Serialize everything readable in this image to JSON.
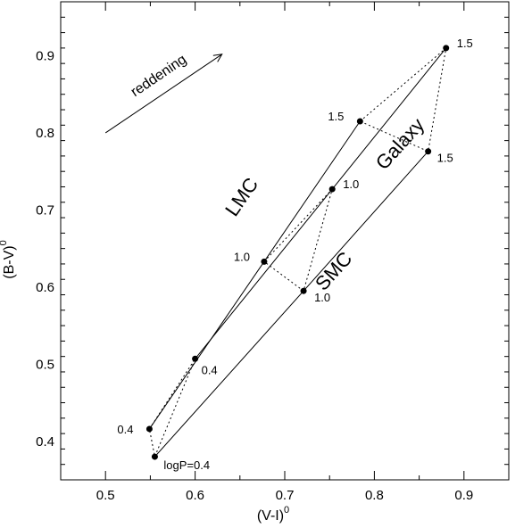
{
  "chart_data": {
    "type": "scatter",
    "xlabel": "(V-I)",
    "xlabel_sup": "0",
    "ylabel": "(B-V)",
    "ylabel_sup": "0",
    "xlim": [
      0.45,
      0.95
    ],
    "ylim": [
      0.35,
      0.97
    ],
    "xticks": [
      0.5,
      0.6,
      0.7,
      0.8,
      0.9
    ],
    "yticks": [
      0.4,
      0.5,
      0.6,
      0.7,
      0.8,
      0.9
    ],
    "grid": false,
    "series": [
      {
        "name": "LMC",
        "x": [
          0.549,
          0.677,
          0.784
        ],
        "y": [
          0.416,
          0.633,
          0.815
        ],
        "point_labels": [
          "0.4",
          "1.0",
          "1.5"
        ],
        "name_at": [
          0.658,
          0.712
        ],
        "name_angle": -55
      },
      {
        "name": "Galaxy",
        "x": [
          0.6,
          0.753,
          0.88
        ],
        "y": [
          0.507,
          0.727,
          0.91
        ],
        "point_labels": [
          "0.4",
          "1.0",
          "1.5"
        ],
        "name_at": [
          0.834,
          0.78
        ],
        "name_angle": -48
      },
      {
        "name": "SMC",
        "x": [
          0.555,
          0.721,
          0.86
        ],
        "y": [
          0.38,
          0.595,
          0.776
        ],
        "point_labels": [
          "logP=0.4",
          "1.0",
          "1.5"
        ],
        "name_at": [
          0.76,
          0.615
        ],
        "name_angle": -48
      }
    ],
    "connectors": [
      {
        "x": [
          0.549,
          0.6,
          0.555,
          0.549
        ],
        "y": [
          0.416,
          0.507,
          0.38,
          0.416
        ]
      },
      {
        "x": [
          0.677,
          0.753,
          0.721,
          0.677
        ],
        "y": [
          0.633,
          0.727,
          0.595,
          0.633
        ]
      },
      {
        "x": [
          0.784,
          0.88,
          0.86,
          0.784
        ],
        "y": [
          0.815,
          0.91,
          0.776,
          0.815
        ]
      }
    ],
    "annotations": [
      {
        "text": "reddening",
        "arrow_from": [
          0.5,
          0.8
        ],
        "arrow_to": [
          0.63,
          0.902
        ]
      }
    ]
  }
}
